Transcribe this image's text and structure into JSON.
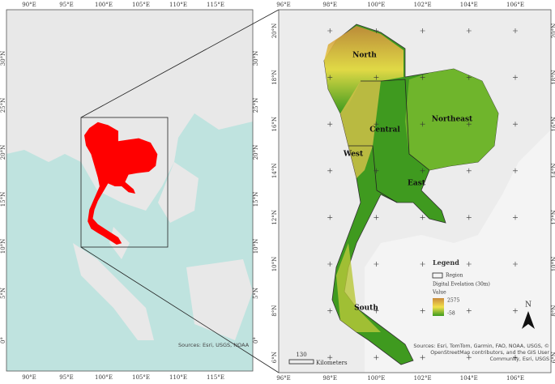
{
  "left_map": {
    "top_labels": [
      "90°E",
      "95°E",
      "100°E",
      "105°E",
      "110°E",
      "115°E"
    ],
    "bottom_labels": [
      "90°E",
      "95°E",
      "100°E",
      "105°E",
      "110°E",
      "115°E"
    ],
    "left_labels": [
      "30°N",
      "25°N",
      "20°N",
      "15°N",
      "10°N",
      "5°N",
      "0°"
    ],
    "right_labels": [
      "30°N",
      "25°N",
      "20°N",
      "15°N",
      "10°N",
      "5°N",
      "0°"
    ],
    "sources": "Sources: Esri, USGS, NOAA"
  },
  "right_map": {
    "top_labels": [
      "96°E",
      "98°E",
      "100°E",
      "102°E",
      "104°E",
      "106°E"
    ],
    "bottom_labels": [
      "96°E",
      "98°E",
      "100°E",
      "102°E",
      "104°E",
      "106°E"
    ],
    "left_labels": [
      "20°N",
      "18°N",
      "16°N",
      "14°N",
      "12°N",
      "10°N",
      "8°N",
      "6°N"
    ],
    "right_labels": [
      "20°N",
      "18°N",
      "16°N",
      "14°N",
      "12°N",
      "10°N",
      "8°N",
      "6°N"
    ],
    "regions": [
      "North",
      "Central",
      "Northeast",
      "West",
      "East",
      "South"
    ],
    "legend": {
      "title": "Legend",
      "region": "Region",
      "elevation": "Digital Evelation (30m)",
      "value": "Value",
      "high": 2575,
      "low": -58
    },
    "north": "N",
    "scale": {
      "value": 130,
      "unit": "Kilometers"
    },
    "sources": "Sources: Esri, TomTom, Garmin, FAO, NOAA, USGS, © OpenStreetMap contributors, and the GIS User Community, Esri, USGS"
  }
}
